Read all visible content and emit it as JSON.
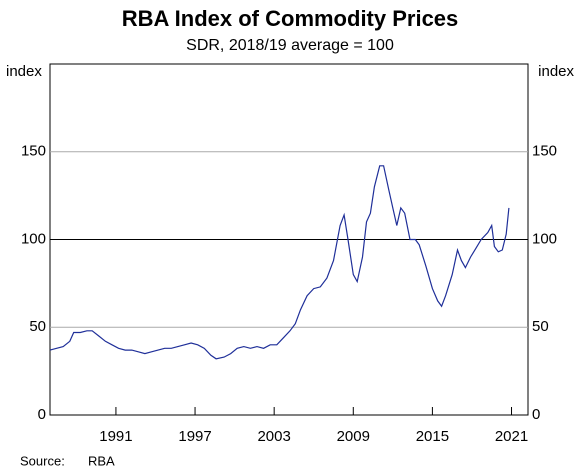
{
  "chart_data": {
    "type": "line",
    "title": "RBA Index of Commodity Prices",
    "subtitle": "SDR, 2018/19 average = 100",
    "y_label": "index",
    "source_label": "Source:",
    "source": "RBA",
    "xlim": [
      1986,
      2022.25
    ],
    "xticks": [
      1991,
      1997,
      2003,
      2009,
      2015,
      2021
    ],
    "ylim": [
      0,
      200
    ],
    "yticks": [
      0,
      50,
      100,
      150
    ],
    "grid": true,
    "series": [
      {
        "name": "RBA Index of Commodity Prices",
        "color": "#1f2f99",
        "x": [
          1986.0,
          1986.5,
          1987,
          1987.5,
          1987.8,
          1988.3,
          1988.8,
          1989.2,
          1989.7,
          1990.2,
          1990.7,
          1991.2,
          1991.7,
          1992.2,
          1992.7,
          1993.2,
          1993.7,
          1994.2,
          1994.7,
          1995.2,
          1995.7,
          1996.2,
          1996.7,
          1997.2,
          1997.7,
          1998.2,
          1998.6,
          1999.2,
          1999.7,
          2000.2,
          2000.7,
          2001.2,
          2001.7,
          2002.2,
          2002.7,
          2003.2,
          2003.7,
          2004.2,
          2004.6,
          2005,
          2005.5,
          2006,
          2006.5,
          2007,
          2007.5,
          2008,
          2008.3,
          2008.6,
          2009,
          2009.3,
          2009.7,
          2010,
          2010.3,
          2010.6,
          2011,
          2011.3,
          2011.7,
          2012,
          2012.3,
          2012.6,
          2012.9,
          2013.3,
          2013.7,
          2014,
          2014.5,
          2015,
          2015.4,
          2015.7,
          2016,
          2016.5,
          2016.9,
          2017.2,
          2017.5,
          2017.9,
          2018.3,
          2018.7,
          2019.2,
          2019.5,
          2019.7,
          2020.0,
          2020.3,
          2020.6,
          2020.8
        ],
        "values": [
          37,
          38,
          39,
          42,
          47,
          47,
          48,
          48,
          45,
          42,
          40,
          38,
          37,
          37,
          36,
          35,
          36,
          37,
          38,
          38,
          39,
          40,
          41,
          40,
          38,
          34,
          32,
          33,
          35,
          38,
          39,
          38,
          39,
          38,
          40,
          40,
          44,
          48,
          52,
          60,
          68,
          72,
          73,
          78,
          88,
          108,
          114,
          100,
          80,
          76,
          90,
          110,
          115,
          130,
          142,
          142,
          128,
          118,
          108,
          118,
          115,
          100,
          100,
          97,
          85,
          72,
          65,
          62,
          68,
          80,
          94,
          88,
          84,
          90,
          95,
          100,
          104,
          108,
          96,
          93,
          94,
          103,
          118
        ]
      }
    ]
  }
}
